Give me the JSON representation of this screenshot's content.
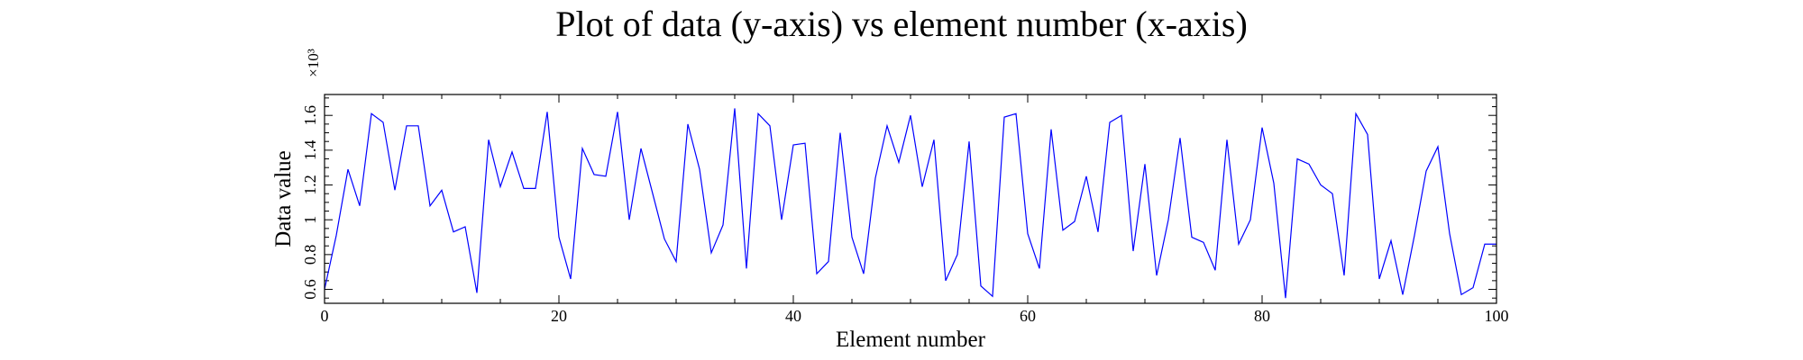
{
  "chart_data": {
    "type": "line",
    "title": "Plot of data (y-axis) vs element number (x-axis)",
    "xlabel": "Element number",
    "ylabel": "Data value",
    "y_multiplier_label": "×10³",
    "xlim": [
      0,
      100
    ],
    "ylim": [
      0.52,
      1.72
    ],
    "x_ticks": [
      0,
      20,
      40,
      60,
      80,
      100
    ],
    "x_tick_labels": [
      "0",
      "20",
      "40",
      "60",
      "80",
      "100"
    ],
    "y_ticks": [
      0.6,
      0.8,
      1.0,
      1.2,
      1.4,
      1.6
    ],
    "y_tick_labels": [
      "0.6",
      "0.8",
      "1",
      "1.2",
      "1.4",
      "1.6"
    ],
    "x_minor_step": 5,
    "y_minor_step": 0.05,
    "grid": false,
    "line_color": "#0000ff",
    "series": [
      {
        "x": [
          0,
          1,
          2,
          3,
          4,
          5,
          6,
          7,
          8,
          9,
          10,
          11,
          12,
          13,
          14,
          15,
          16,
          17,
          18,
          19,
          20,
          21,
          22,
          23,
          24,
          25,
          26,
          27,
          28,
          29,
          30,
          31,
          32,
          33,
          34,
          35,
          36,
          37,
          38,
          39,
          40,
          41,
          42,
          43,
          44,
          45,
          46,
          47,
          48,
          49,
          50,
          51,
          52,
          53,
          54,
          55,
          56,
          57,
          58,
          59,
          60,
          61,
          62,
          63,
          64,
          65,
          66,
          67,
          68,
          69,
          70,
          71,
          72,
          73,
          74,
          75,
          76,
          77,
          78,
          79,
          80,
          81,
          82,
          83,
          84,
          85,
          86,
          87,
          88,
          89,
          90,
          91,
          92,
          93,
          94,
          95,
          96,
          97,
          98,
          99,
          100
        ],
        "y": [
          0.6,
          0.91,
          1.29,
          1.08,
          1.61,
          1.56,
          1.17,
          1.54,
          1.54,
          1.08,
          1.17,
          0.93,
          0.96,
          0.58,
          1.46,
          1.19,
          1.39,
          1.18,
          1.18,
          1.62,
          0.9,
          0.66,
          1.41,
          1.26,
          1.25,
          1.62,
          1.0,
          1.41,
          1.15,
          0.89,
          0.76,
          1.55,
          1.29,
          0.81,
          0.97,
          1.64,
          0.72,
          1.61,
          1.54,
          1.0,
          1.43,
          1.44,
          0.69,
          0.76,
          1.5,
          0.9,
          0.69,
          1.24,
          1.54,
          1.33,
          1.6,
          1.19,
          1.46,
          0.65,
          0.8,
          1.45,
          0.62,
          0.56,
          1.59,
          1.61,
          0.92,
          0.72,
          1.52,
          0.94,
          0.99,
          1.25,
          0.93,
          1.56,
          1.6,
          0.82,
          1.32,
          0.68,
          1.0,
          1.47,
          0.9,
          0.87,
          0.71,
          1.46,
          0.86,
          1.0,
          1.53,
          1.21,
          0.55,
          1.35,
          1.32,
          1.2,
          1.15,
          0.68,
          1.61,
          1.49,
          0.66,
          0.88,
          0.57,
          0.91,
          1.28,
          1.42,
          0.92,
          0.57,
          0.61,
          0.86,
          0.86
        ]
      }
    ]
  }
}
